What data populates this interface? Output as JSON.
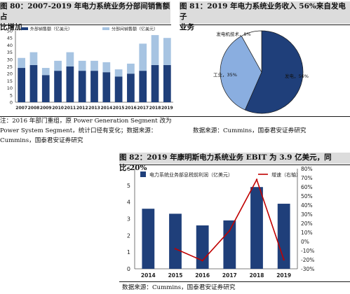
{
  "colors": {
    "dark_blue": "#1f3f7a",
    "light_blue": "#a7c4e2",
    "pie_light": "#8aaee0",
    "red": "#c00000",
    "title_bg": "#dcdcdc"
  },
  "fig80": {
    "title_line1": "图 80：2007-2019 年电力系统业务分部间销售额占",
    "title_line2": "比增加",
    "note_line1": "注：2016 年部门重组，原 Power Generation Segment 改为",
    "note_line2": "Power System Segment，统计口径有变化；数据来源：",
    "note_line3": "Cummins，国泰君安证券研究"
  },
  "fig81": {
    "title_line1": "图 81：2019 年电力系统业务收入 56%来自发电子",
    "title_line2": "业务",
    "source": "数据来源：Cummins，国泰君安证券研究"
  },
  "fig82": {
    "title": "图 82：2019 年康明斯电力系统业务 EBIT 为 3.9 亿美元，同比-20%",
    "source": "数据来源：Cummins，国泰君安证券研究"
  },
  "chart_data": [
    {
      "type": "bar",
      "stacked": true,
      "categories": [
        "2007",
        "2008",
        "2009",
        "2010",
        "2011",
        "2012",
        "2013",
        "2014",
        "2015",
        "2016",
        "2017",
        "2018",
        "2019"
      ],
      "series": [
        {
          "name": "外部销售额（亿美元）",
          "values": [
            24,
            26,
            19,
            22,
            25,
            22,
            22,
            21,
            18,
            20,
            22,
            26,
            26
          ]
        },
        {
          "name": "分部间销售额（亿美元）",
          "values": [
            7,
            9,
            5,
            7,
            10,
            7,
            7,
            7,
            5,
            7,
            19,
            21,
            19
          ]
        }
      ],
      "ylim": [
        0,
        50
      ],
      "yticks": [
        0,
        5,
        10,
        15,
        20,
        25,
        30,
        35,
        40,
        45,
        50
      ],
      "legend": "top",
      "grid": false
    },
    {
      "type": "pie",
      "labels": [
        "发电",
        "工业",
        "发电机技术"
      ],
      "values": [
        56,
        35,
        8
      ],
      "value_labels": [
        "56%",
        "35%",
        "8%"
      ]
    },
    {
      "type": "bar",
      "categories": [
        "2014",
        "2015",
        "2016",
        "2017",
        "2018",
        "2019"
      ],
      "series": [
        {
          "name": "电力系统业务部息税前利润（亿美元）",
          "values": [
            3.6,
            3.3,
            2.6,
            2.9,
            4.9,
            3.9
          ],
          "axis": "left"
        },
        {
          "name": "增速（右轴）",
          "type": "line",
          "values": [
            null,
            -8,
            -21,
            12,
            68,
            -20
          ],
          "axis": "right"
        }
      ],
      "ylim": [
        0,
        6
      ],
      "yticks": [
        0,
        1,
        2,
        3,
        4,
        5,
        6
      ],
      "y2lim": [
        -30,
        80
      ],
      "y2ticks": [
        "-30%",
        "-20%",
        "-10%",
        "0%",
        "10%",
        "20%",
        "30%",
        "40%",
        "50%",
        "60%",
        "70%",
        "80%"
      ],
      "legend": "top",
      "grid": false
    }
  ]
}
